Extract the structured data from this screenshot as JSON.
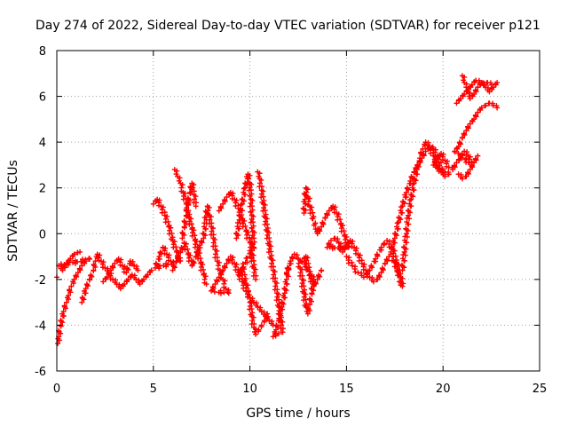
{
  "chart_data": {
    "type": "scatter",
    "title": "Day 274 of 2022, Sidereal Day-to-day VTEC variation (SDTVAR) for receiver p121",
    "xlabel": "GPS time / hours",
    "ylabel": "SDTVAR / TECUs",
    "xlim": [
      0,
      25
    ],
    "ylim": [
      -6,
      8
    ],
    "xticks": [
      0,
      5,
      10,
      15,
      20,
      25
    ],
    "yticks": [
      -6,
      -4,
      -2,
      0,
      2,
      4,
      6,
      8
    ],
    "grid": true,
    "marker": "+",
    "color": "#ff0000",
    "series": [
      {
        "name": "p121",
        "points": [
          [
            0.0,
            -1.9
          ],
          [
            0.05,
            -4.8
          ],
          [
            0.1,
            -4.5
          ],
          [
            0.2,
            -4.0
          ],
          [
            0.35,
            -3.4
          ],
          [
            0.5,
            -3.0
          ],
          [
            0.6,
            -2.7
          ],
          [
            0.75,
            -2.3
          ],
          [
            0.9,
            -2.0
          ],
          [
            1.1,
            -1.7
          ],
          [
            1.3,
            -1.4
          ],
          [
            1.5,
            -1.2
          ],
          [
            1.7,
            -1.1
          ],
          [
            0.1,
            -1.4
          ],
          [
            0.3,
            -1.6
          ],
          [
            0.5,
            -1.3
          ],
          [
            0.7,
            -1.1
          ],
          [
            0.9,
            -0.9
          ],
          [
            1.2,
            -0.8
          ],
          [
            1.3,
            -3.0
          ],
          [
            1.5,
            -2.4
          ],
          [
            1.7,
            -2.0
          ],
          [
            1.9,
            -1.6
          ],
          [
            2.0,
            -1.2
          ],
          [
            2.1,
            -0.9
          ],
          [
            2.3,
            -1.2
          ],
          [
            2.5,
            -1.5
          ],
          [
            2.7,
            -1.7
          ],
          [
            2.9,
            -2.0
          ],
          [
            3.1,
            -2.2
          ],
          [
            3.3,
            -2.4
          ],
          [
            3.5,
            -2.2
          ],
          [
            3.7,
            -2.0
          ],
          [
            3.9,
            -1.8
          ],
          [
            4.1,
            -2.0
          ],
          [
            4.3,
            -2.2
          ],
          [
            4.5,
            -2.0
          ],
          [
            4.7,
            -1.8
          ],
          [
            4.9,
            -1.6
          ],
          [
            2.4,
            -2.1
          ],
          [
            2.6,
            -1.9
          ],
          [
            2.8,
            -1.6
          ],
          [
            3.0,
            -1.3
          ],
          [
            3.2,
            -1.1
          ],
          [
            3.4,
            -1.4
          ],
          [
            3.6,
            -1.7
          ],
          [
            3.8,
            -1.2
          ],
          [
            4.0,
            -1.4
          ],
          [
            4.2,
            -1.6
          ],
          [
            5.0,
            1.3
          ],
          [
            5.2,
            1.5
          ],
          [
            5.4,
            1.2
          ],
          [
            5.6,
            0.8
          ],
          [
            5.8,
            0.3
          ],
          [
            6.0,
            -0.3
          ],
          [
            6.2,
            -0.8
          ],
          [
            6.4,
            -1.2
          ],
          [
            5.1,
            -1.5
          ],
          [
            5.3,
            -1.0
          ],
          [
            5.5,
            -0.6
          ],
          [
            5.7,
            -0.9
          ],
          [
            5.9,
            -1.2
          ],
          [
            6.1,
            2.8
          ],
          [
            6.25,
            2.5
          ],
          [
            6.4,
            2.2
          ],
          [
            6.55,
            1.8
          ],
          [
            6.7,
            1.3
          ],
          [
            6.85,
            0.7
          ],
          [
            7.0,
            0.2
          ],
          [
            7.15,
            -0.3
          ],
          [
            7.3,
            -0.8
          ],
          [
            7.45,
            -1.3
          ],
          [
            7.6,
            -1.8
          ],
          [
            7.75,
            -2.2
          ],
          [
            6.5,
            -0.2
          ],
          [
            6.6,
            0.3
          ],
          [
            6.7,
            0.8
          ],
          [
            6.8,
            1.3
          ],
          [
            6.9,
            1.8
          ],
          [
            7.0,
            2.2
          ],
          [
            7.1,
            1.7
          ],
          [
            7.2,
            1.2
          ],
          [
            6.0,
            -1.6
          ],
          [
            6.2,
            -1.2
          ],
          [
            6.4,
            -0.8
          ],
          [
            6.6,
            -0.4
          ],
          [
            6.8,
            -0.9
          ],
          [
            7.0,
            -1.4
          ],
          [
            7.2,
            -1.0
          ],
          [
            7.4,
            -0.5
          ],
          [
            7.6,
            -0.2
          ],
          [
            7.8,
            1.2
          ],
          [
            7.9,
            0.8
          ],
          [
            8.0,
            0.3
          ],
          [
            8.1,
            -0.2
          ],
          [
            8.2,
            -0.7
          ],
          [
            8.3,
            -1.2
          ],
          [
            8.45,
            -1.6
          ],
          [
            8.6,
            -2.0
          ],
          [
            8.75,
            -2.4
          ],
          [
            8.9,
            -2.6
          ],
          [
            8.0,
            -2.5
          ],
          [
            8.2,
            -2.2
          ],
          [
            8.4,
            -1.9
          ],
          [
            8.6,
            -1.6
          ],
          [
            8.8,
            -1.3
          ],
          [
            9.0,
            -1.0
          ],
          [
            9.2,
            -1.3
          ],
          [
            9.4,
            -1.7
          ],
          [
            9.6,
            -2.1
          ],
          [
            9.8,
            -2.5
          ],
          [
            10.0,
            -2.8
          ],
          [
            10.2,
            -3.0
          ],
          [
            10.4,
            -3.2
          ],
          [
            10.6,
            -3.4
          ],
          [
            10.8,
            -3.6
          ],
          [
            11.0,
            -3.8
          ],
          [
            11.2,
            -4.0
          ],
          [
            8.4,
            1.0
          ],
          [
            8.6,
            1.3
          ],
          [
            8.8,
            1.6
          ],
          [
            9.0,
            1.8
          ],
          [
            9.2,
            1.5
          ],
          [
            9.4,
            1.1
          ],
          [
            9.6,
            0.6
          ],
          [
            9.8,
            0.1
          ],
          [
            10.0,
            -0.4
          ],
          [
            10.1,
            -0.9
          ],
          [
            10.2,
            -1.5
          ],
          [
            10.3,
            -2.0
          ],
          [
            9.3,
            -0.2
          ],
          [
            9.45,
            0.6
          ],
          [
            9.6,
            1.3
          ],
          [
            9.75,
            2.0
          ],
          [
            9.9,
            2.6
          ],
          [
            10.0,
            2.2
          ],
          [
            10.05,
            1.5
          ],
          [
            10.1,
            0.8
          ],
          [
            10.15,
            0.1
          ],
          [
            10.2,
            -0.6
          ],
          [
            9.4,
            -1.8
          ],
          [
            9.6,
            -1.5
          ],
          [
            9.8,
            -2.2
          ],
          [
            10.0,
            -3.0
          ],
          [
            10.1,
            -3.6
          ],
          [
            10.2,
            -4.1
          ],
          [
            10.3,
            -4.4
          ],
          [
            10.45,
            -4.2
          ],
          [
            10.6,
            -4.0
          ],
          [
            10.75,
            -3.8
          ],
          [
            10.9,
            -3.5
          ],
          [
            10.4,
            2.7
          ],
          [
            10.5,
            2.4
          ],
          [
            10.6,
            1.9
          ],
          [
            10.7,
            1.3
          ],
          [
            10.8,
            0.7
          ],
          [
            10.9,
            0.1
          ],
          [
            11.0,
            -0.5
          ],
          [
            11.1,
            -1.1
          ],
          [
            11.2,
            -1.6
          ],
          [
            11.3,
            -2.1
          ],
          [
            11.4,
            -2.6
          ],
          [
            11.5,
            -3.2
          ],
          [
            11.6,
            -3.8
          ],
          [
            11.7,
            -4.3
          ],
          [
            11.2,
            -4.5
          ],
          [
            11.35,
            -4.2
          ],
          [
            11.5,
            -3.7
          ],
          [
            11.65,
            -3.2
          ],
          [
            11.8,
            -2.6
          ],
          [
            11.9,
            -2.0
          ],
          [
            12.0,
            -1.5
          ],
          [
            11.9,
            -1.7
          ],
          [
            12.1,
            -1.2
          ],
          [
            12.3,
            -0.9
          ],
          [
            12.5,
            -1.1
          ],
          [
            12.6,
            -1.5
          ],
          [
            12.7,
            -2.0
          ],
          [
            12.8,
            -2.6
          ],
          [
            12.9,
            -3.2
          ],
          [
            13.0,
            -3.5
          ],
          [
            13.1,
            -3.1
          ],
          [
            13.2,
            -2.6
          ],
          [
            13.3,
            -2.0
          ],
          [
            12.7,
            -1.2
          ],
          [
            12.9,
            -1.0
          ],
          [
            13.1,
            -1.8
          ],
          [
            13.3,
            -2.3
          ],
          [
            13.5,
            -2.0
          ],
          [
            13.7,
            -1.6
          ],
          [
            12.8,
            0.9
          ],
          [
            12.85,
            1.5
          ],
          [
            12.9,
            2.0
          ],
          [
            13.0,
            1.6
          ],
          [
            13.1,
            1.2
          ],
          [
            13.5,
            0.0
          ],
          [
            13.7,
            0.3
          ],
          [
            13.9,
            0.7
          ],
          [
            14.1,
            1.0
          ],
          [
            14.3,
            1.2
          ],
          [
            14.5,
            0.9
          ],
          [
            14.7,
            0.4
          ],
          [
            14.9,
            -0.1
          ],
          [
            15.1,
            -0.6
          ],
          [
            14.0,
            -0.6
          ],
          [
            14.2,
            -0.3
          ],
          [
            14.4,
            -0.2
          ],
          [
            14.6,
            -0.4
          ],
          [
            14.8,
            -0.8
          ],
          [
            15.0,
            -0.5
          ],
          [
            15.2,
            -0.3
          ],
          [
            15.4,
            -0.6
          ],
          [
            15.6,
            -0.9
          ],
          [
            15.8,
            -1.3
          ],
          [
            16.0,
            -1.6
          ],
          [
            16.2,
            -1.9
          ],
          [
            16.4,
            -2.1
          ],
          [
            16.6,
            -2.0
          ],
          [
            16.8,
            -1.7
          ],
          [
            17.0,
            -1.3
          ],
          [
            17.2,
            -1.0
          ],
          [
            15.0,
            -1.0
          ],
          [
            15.3,
            -1.4
          ],
          [
            15.6,
            -1.7
          ],
          [
            15.9,
            -1.9
          ],
          [
            16.2,
            -1.6
          ],
          [
            16.5,
            -1.1
          ],
          [
            16.8,
            -0.6
          ],
          [
            17.1,
            -0.3
          ],
          [
            17.4,
            -0.7
          ],
          [
            17.6,
            -1.3
          ],
          [
            17.8,
            -1.9
          ],
          [
            17.9,
            -2.3
          ],
          [
            17.3,
            -0.8
          ],
          [
            17.5,
            -0.2
          ],
          [
            17.7,
            0.5
          ],
          [
            17.9,
            1.2
          ],
          [
            18.1,
            1.8
          ],
          [
            18.3,
            2.3
          ],
          [
            18.5,
            2.7
          ],
          [
            18.7,
            3.0
          ],
          [
            18.9,
            3.3
          ],
          [
            19.1,
            3.6
          ],
          [
            19.3,
            3.8
          ],
          [
            19.5,
            3.7
          ],
          [
            19.7,
            3.4
          ],
          [
            19.9,
            3.1
          ],
          [
            17.9,
            -1.6
          ],
          [
            18.0,
            -0.8
          ],
          [
            18.1,
            0.0
          ],
          [
            18.2,
            0.8
          ],
          [
            18.35,
            1.5
          ],
          [
            18.5,
            2.2
          ],
          [
            18.65,
            2.8
          ],
          [
            18.8,
            3.3
          ],
          [
            18.95,
            3.7
          ],
          [
            19.1,
            4.0
          ],
          [
            19.3,
            3.8
          ],
          [
            19.5,
            3.4
          ],
          [
            19.7,
            3.0
          ],
          [
            19.9,
            2.7
          ],
          [
            20.1,
            2.5
          ],
          [
            20.3,
            2.6
          ],
          [
            19.5,
            3.0
          ],
          [
            19.7,
            3.3
          ],
          [
            19.9,
            3.5
          ],
          [
            20.1,
            3.2
          ],
          [
            20.3,
            2.9
          ],
          [
            20.5,
            2.8
          ],
          [
            20.7,
            3.1
          ],
          [
            20.9,
            3.3
          ],
          [
            21.1,
            3.6
          ],
          [
            21.3,
            3.4
          ],
          [
            21.5,
            3.0
          ],
          [
            20.6,
            3.6
          ],
          [
            20.8,
            3.8
          ],
          [
            21.0,
            4.2
          ],
          [
            21.2,
            4.5
          ],
          [
            21.4,
            4.8
          ],
          [
            21.6,
            5.0
          ],
          [
            21.8,
            5.3
          ],
          [
            22.0,
            5.5
          ],
          [
            22.2,
            5.6
          ],
          [
            22.4,
            5.7
          ],
          [
            22.6,
            5.6
          ],
          [
            22.8,
            5.5
          ],
          [
            21.0,
            6.9
          ],
          [
            21.1,
            6.6
          ],
          [
            21.2,
            6.4
          ],
          [
            21.3,
            6.2
          ],
          [
            21.4,
            5.9
          ],
          [
            21.6,
            6.1
          ],
          [
            21.8,
            6.4
          ],
          [
            22.0,
            6.6
          ],
          [
            22.2,
            6.4
          ],
          [
            22.4,
            6.2
          ],
          [
            22.6,
            6.4
          ],
          [
            22.8,
            6.6
          ],
          [
            20.7,
            5.7
          ],
          [
            20.9,
            5.9
          ],
          [
            21.1,
            6.1
          ],
          [
            21.3,
            6.3
          ],
          [
            21.5,
            6.5
          ],
          [
            21.7,
            6.7
          ],
          [
            21.9,
            6.6
          ],
          [
            22.1,
            6.5
          ],
          [
            22.3,
            6.6
          ],
          [
            22.5,
            6.5
          ],
          [
            20.8,
            2.6
          ],
          [
            21.0,
            2.4
          ],
          [
            21.2,
            2.5
          ],
          [
            21.4,
            2.8
          ],
          [
            21.6,
            3.1
          ],
          [
            21.8,
            3.4
          ]
        ]
      }
    ]
  }
}
